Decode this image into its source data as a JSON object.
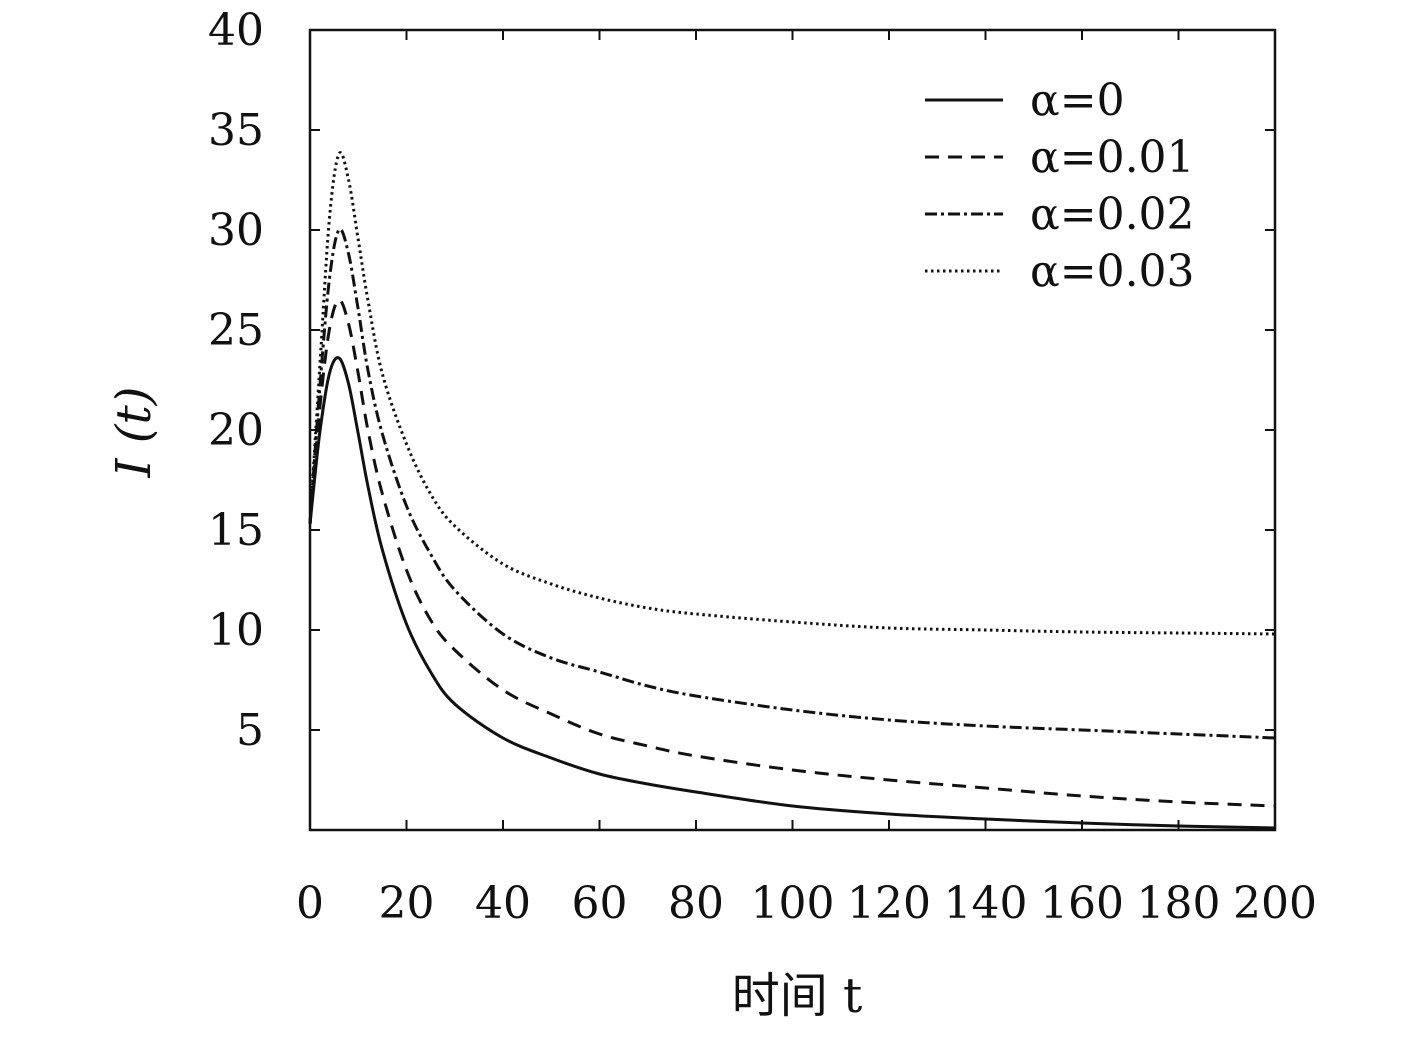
{
  "chart_data": {
    "type": "line",
    "xlabel": "时间 t",
    "ylabel": "I (t)",
    "xlim": [
      0,
      200
    ],
    "ylim": [
      0,
      40
    ],
    "xticks": [
      0,
      20,
      40,
      60,
      80,
      100,
      120,
      140,
      160,
      180,
      200
    ],
    "yticks": [
      5,
      10,
      15,
      20,
      25,
      30,
      35,
      40
    ],
    "grid": false,
    "legend_position": "top-right",
    "colors": {
      "line": "#111111",
      "frame": "#111111"
    },
    "series": [
      {
        "name": "α=0",
        "dash": "solid",
        "x": [
          0,
          2,
          4,
          6,
          8,
          10,
          12,
          15,
          20,
          25,
          30,
          40,
          50,
          60,
          70,
          80,
          100,
          120,
          140,
          160,
          180,
          200
        ],
        "y": [
          15.3,
          19.8,
          22.8,
          23.6,
          22.3,
          19.8,
          17.2,
          14.0,
          10.3,
          7.9,
          6.3,
          4.6,
          3.6,
          2.8,
          2.3,
          1.9,
          1.2,
          0.8,
          0.55,
          0.35,
          0.2,
          0.1
        ]
      },
      {
        "name": "α=0.01",
        "dash": "dashed",
        "x": [
          0,
          2,
          4,
          6,
          8,
          10,
          12,
          15,
          20,
          25,
          30,
          40,
          50,
          60,
          70,
          80,
          100,
          120,
          140,
          160,
          180,
          200
        ],
        "y": [
          15.3,
          21.0,
          25.0,
          26.5,
          25.3,
          22.8,
          20.0,
          16.8,
          13.0,
          10.5,
          9.0,
          7.0,
          5.8,
          4.8,
          4.2,
          3.7,
          3.0,
          2.5,
          2.1,
          1.7,
          1.4,
          1.2
        ]
      },
      {
        "name": "α=0.02",
        "dash": "dashdot",
        "x": [
          0,
          2,
          4,
          6,
          8,
          10,
          12,
          15,
          20,
          25,
          30,
          40,
          50,
          60,
          70,
          80,
          100,
          120,
          140,
          160,
          180,
          200
        ],
        "y": [
          15.3,
          22.0,
          27.5,
          30.0,
          28.8,
          26.0,
          23.0,
          19.8,
          16.2,
          13.8,
          12.0,
          9.8,
          8.6,
          7.9,
          7.2,
          6.7,
          6.0,
          5.5,
          5.2,
          5.0,
          4.8,
          4.6
        ]
      },
      {
        "name": "α=0.03",
        "dash": "dotted",
        "x": [
          0,
          2,
          4,
          6,
          8,
          10,
          12,
          15,
          20,
          25,
          30,
          40,
          50,
          60,
          70,
          80,
          100,
          120,
          140,
          160,
          180,
          200
        ],
        "y": [
          15.3,
          23.0,
          30.5,
          33.8,
          32.5,
          29.5,
          26.5,
          22.8,
          19.3,
          16.8,
          15.2,
          13.3,
          12.3,
          11.6,
          11.1,
          10.8,
          10.4,
          10.1,
          10.0,
          9.9,
          9.85,
          9.8
        ]
      }
    ]
  }
}
